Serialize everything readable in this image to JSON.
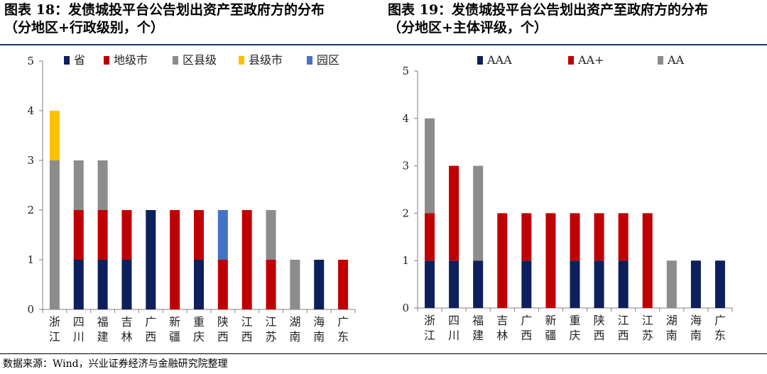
{
  "source": "数据来源：Wind，兴业证券经济与金融研究院整理",
  "colors": {
    "navy": "#0d1f5c",
    "red": "#c00000",
    "gray": "#8c8c8c",
    "gold": "#ffc000",
    "blue": "#4472c4"
  },
  "chart_data": [
    {
      "type": "bar",
      "stacked": true,
      "title": "图表 18：发债城投平台公告划出资产至政府方的分布",
      "subtitle": "（分地区+行政级别，个）",
      "categories": [
        "浙江",
        "四川",
        "福建",
        "吉林",
        "广西",
        "新疆",
        "重庆",
        "陕西",
        "江西",
        "江苏",
        "湖南",
        "海南",
        "广东"
      ],
      "series": [
        {
          "name": "省",
          "color": "#0d1f5c",
          "values": [
            0,
            1,
            1,
            1,
            2,
            0,
            1,
            0,
            0,
            0,
            0,
            1,
            0
          ]
        },
        {
          "name": "地级市",
          "color": "#c00000",
          "values": [
            0,
            1,
            1,
            1,
            0,
            2,
            1,
            1,
            2,
            1,
            0,
            0,
            1
          ]
        },
        {
          "name": "区县级",
          "color": "#8c8c8c",
          "values": [
            3,
            1,
            1,
            0,
            0,
            0,
            0,
            0,
            0,
            1,
            1,
            0,
            0
          ]
        },
        {
          "name": "县级市",
          "color": "#ffc000",
          "values": [
            1,
            0,
            0,
            0,
            0,
            0,
            0,
            0,
            0,
            0,
            0,
            0,
            0
          ]
        },
        {
          "name": "园区",
          "color": "#4472c4",
          "values": [
            0,
            0,
            0,
            0,
            0,
            0,
            0,
            1,
            0,
            0,
            0,
            0,
            0
          ]
        }
      ],
      "ylim": [
        0,
        5
      ],
      "yticks": [
        "0",
        "1",
        "2",
        "3",
        "4",
        "5"
      ],
      "legend_position": "top"
    },
    {
      "type": "bar",
      "stacked": true,
      "title": "图表 19：发债城投平台公告划出资产至政府方的分布",
      "subtitle": "（分地区+主体评级，个）",
      "categories": [
        "浙江",
        "四川",
        "福建",
        "吉林",
        "广西",
        "新疆",
        "重庆",
        "陕西",
        "江西",
        "江苏",
        "湖南",
        "海南",
        "广东"
      ],
      "series": [
        {
          "name": "AAA",
          "color": "#0d1f5c",
          "values": [
            1,
            1,
            1,
            0,
            1,
            0,
            1,
            1,
            1,
            0,
            0,
            1,
            1
          ]
        },
        {
          "name": "AA+",
          "color": "#c00000",
          "values": [
            1,
            2,
            0,
            2,
            1,
            2,
            1,
            1,
            1,
            2,
            0,
            0,
            0
          ]
        },
        {
          "name": "AA",
          "color": "#8c8c8c",
          "values": [
            2,
            0,
            2,
            0,
            0,
            0,
            0,
            0,
            0,
            0,
            1,
            0,
            0
          ]
        }
      ],
      "ylim": [
        0,
        5
      ],
      "yticks": [
        "0",
        "1",
        "2",
        "3",
        "4",
        "5"
      ],
      "legend_position": "top"
    }
  ]
}
